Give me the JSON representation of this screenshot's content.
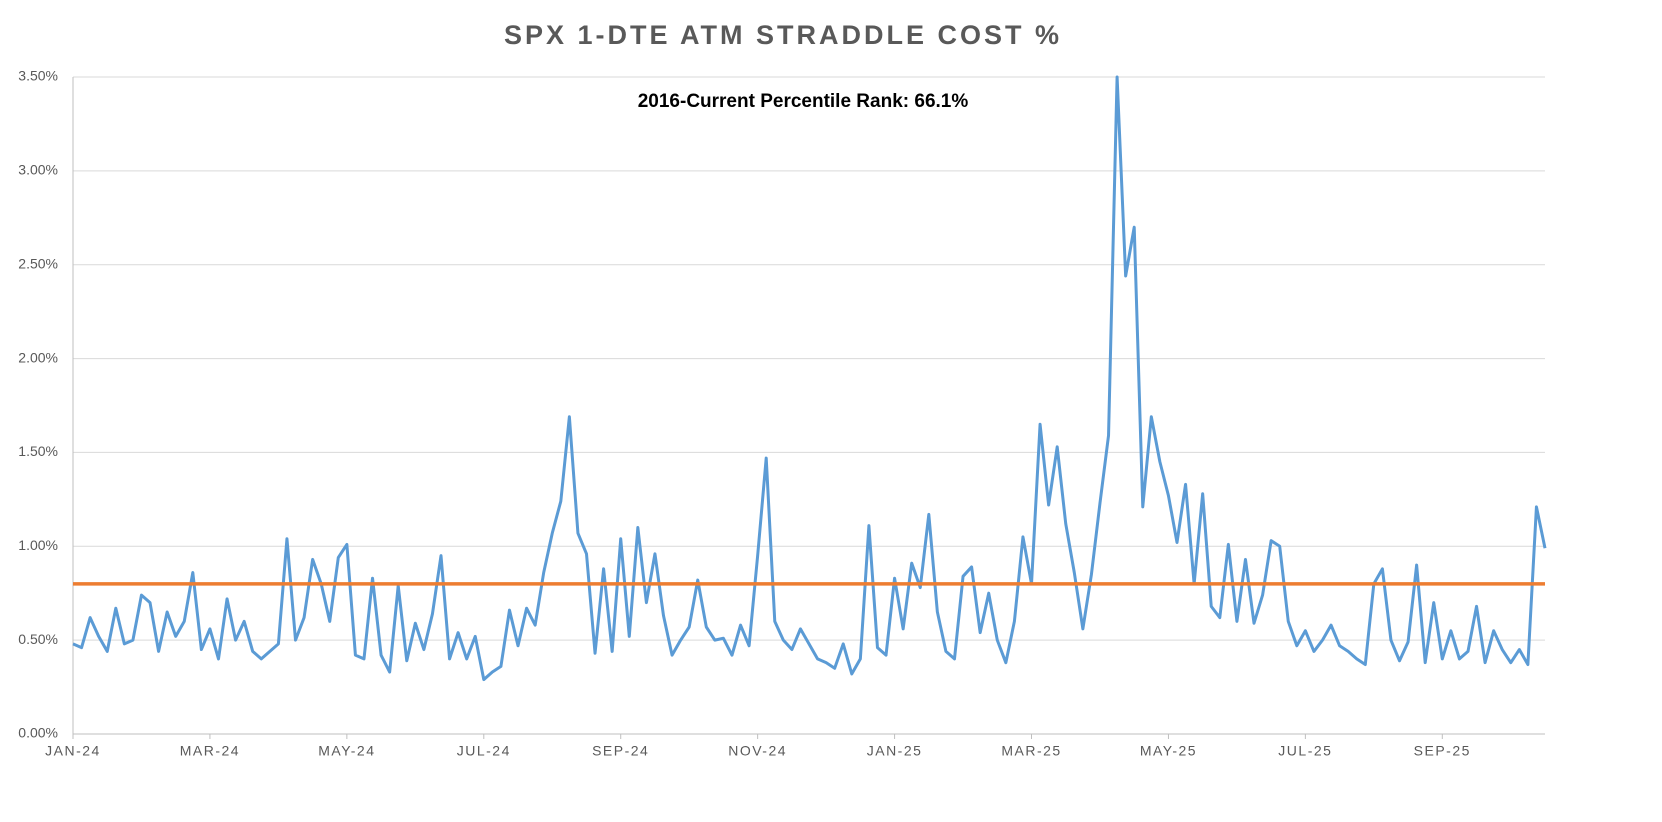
{
  "chart_data": {
    "type": "line",
    "title": "SPX 1-DTE ATM STRADDLE COST %",
    "annotation": "2016-Current Percentile Rank: 66.1%",
    "color": "#5b9bd5",
    "reference_line": 0.8,
    "reference_color": "#ed7d31",
    "grid": true,
    "ylim": [
      0,
      3.5
    ],
    "yticks": [
      {
        "value": 0,
        "label": "0.00%"
      },
      {
        "value": 0.5,
        "label": "0.50%"
      },
      {
        "value": 1,
        "label": "1.00%"
      },
      {
        "value": 1.5,
        "label": "1.50%"
      },
      {
        "value": 2,
        "label": "2.00%"
      },
      {
        "value": 2.5,
        "label": "2.50%"
      },
      {
        "value": 3,
        "label": "3.00%"
      },
      {
        "value": 3.5,
        "label": "3.50%"
      }
    ],
    "categories": [
      "JAN-24",
      null,
      null,
      null,
      null,
      null,
      null,
      null,
      null,
      null,
      null,
      null,
      null,
      null,
      null,
      null,
      "MAR-24",
      null,
      null,
      null,
      null,
      null,
      null,
      null,
      null,
      null,
      null,
      null,
      null,
      null,
      null,
      null,
      "MAY-24",
      null,
      null,
      null,
      null,
      null,
      null,
      null,
      null,
      null,
      null,
      null,
      null,
      null,
      null,
      null,
      "JUL-24",
      null,
      null,
      null,
      null,
      null,
      null,
      null,
      null,
      null,
      null,
      null,
      null,
      null,
      null,
      null,
      "SEP-24",
      null,
      null,
      null,
      null,
      null,
      null,
      null,
      null,
      null,
      null,
      null,
      null,
      null,
      null,
      null,
      "NOV-24",
      null,
      null,
      null,
      null,
      null,
      null,
      null,
      null,
      null,
      null,
      null,
      null,
      null,
      null,
      null,
      "JAN-25",
      null,
      null,
      null,
      null,
      null,
      null,
      null,
      null,
      null,
      null,
      null,
      null,
      null,
      null,
      null,
      "MAR-25",
      null,
      null,
      null,
      null,
      null,
      null,
      null,
      null,
      null,
      null,
      null,
      null,
      null,
      null,
      null,
      "MAY-25",
      null,
      null,
      null,
      null,
      null,
      null,
      null,
      null,
      null,
      null,
      null,
      null,
      null,
      null,
      null,
      "JUL-25",
      null,
      null,
      null,
      null,
      null,
      null,
      null,
      null,
      null,
      null,
      null,
      null,
      null,
      null,
      null,
      "SEP-25",
      null,
      null,
      null,
      null,
      null,
      null,
      null,
      null,
      null,
      null,
      null,
      null
    ],
    "values": [
      0.48,
      0.46,
      0.62,
      0.52,
      0.44,
      0.67,
      0.48,
      0.5,
      0.74,
      0.7,
      0.44,
      0.65,
      0.52,
      0.6,
      0.86,
      0.45,
      0.56,
      0.4,
      0.72,
      0.5,
      0.6,
      0.44,
      0.4,
      0.44,
      0.48,
      1.04,
      0.5,
      0.62,
      0.93,
      0.8,
      0.6,
      0.94,
      1.01,
      0.42,
      0.4,
      0.83,
      0.42,
      0.33,
      0.79,
      0.39,
      0.59,
      0.45,
      0.64,
      0.95,
      0.4,
      0.54,
      0.4,
      0.52,
      0.29,
      0.33,
      0.36,
      0.66,
      0.47,
      0.67,
      0.58,
      0.86,
      1.07,
      1.24,
      1.69,
      1.07,
      0.96,
      0.43,
      0.88,
      0.44,
      1.04,
      0.52,
      1.1,
      0.7,
      0.96,
      0.63,
      0.42,
      0.5,
      0.57,
      0.82,
      0.57,
      0.5,
      0.51,
      0.42,
      0.58,
      0.47,
      0.95,
      1.47,
      0.6,
      0.5,
      0.45,
      0.56,
      0.48,
      0.4,
      0.38,
      0.35,
      0.48,
      0.32,
      0.4,
      1.11,
      0.46,
      0.42,
      0.83,
      0.56,
      0.91,
      0.78,
      1.17,
      0.65,
      0.44,
      0.4,
      0.84,
      0.89,
      0.54,
      0.75,
      0.5,
      0.38,
      0.6,
      1.05,
      0.8,
      1.65,
      1.22,
      1.53,
      1.12,
      0.86,
      0.56,
      0.85,
      1.23,
      1.59,
      3.5,
      2.44,
      2.7,
      1.21,
      1.69,
      1.45,
      1.27,
      1.02,
      1.33,
      0.8,
      1.28,
      0.68,
      0.62,
      1.01,
      0.6,
      0.93,
      0.59,
      0.74,
      1.03,
      1.0,
      0.6,
      0.47,
      0.55,
      0.44,
      0.5,
      0.58,
      0.47,
      0.44,
      0.4,
      0.37,
      0.8,
      0.88,
      0.5,
      0.39,
      0.49,
      0.9,
      0.38,
      0.7,
      0.4,
      0.55,
      0.4,
      0.44,
      0.68,
      0.38,
      0.55,
      0.45,
      0.38,
      0.45,
      0.37,
      1.21,
      0.99
    ]
  }
}
